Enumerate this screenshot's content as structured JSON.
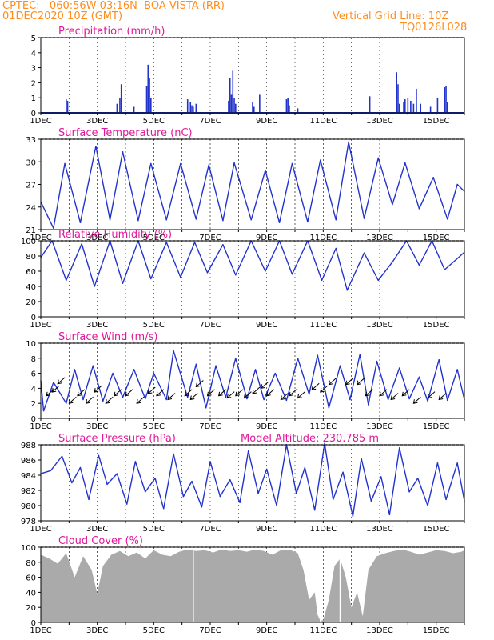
{
  "header": {
    "line1": "CPTEC:   060:56W-03:16N  BOA VISTA (RR)",
    "line2": "01DEC2020 10Z (GMT)",
    "right1": "Vertical Grid Line: 10Z",
    "right2": "TQ0126L028"
  },
  "colors": {
    "header": "#ff8c1a",
    "title": "#e0189a",
    "line": "#2233cc",
    "cloud": "#aaaaaa"
  },
  "panels": {
    "precip": {
      "title": "Precipitation (mm/h)"
    },
    "temp": {
      "title": "Surface Temperature (nC)"
    },
    "rh": {
      "title": "Relative Humidity (%)"
    },
    "wind": {
      "title": "Surface Wind (m/s)"
    },
    "pres": {
      "title": "Surface Pressure (hPa)",
      "extra": "Model Altitude: 230.785 m"
    },
    "cloud": {
      "title": "Cloud Cover (%)"
    }
  },
  "chart_data": [
    {
      "type": "bar",
      "title": "Precipitation (mm/h)",
      "ylim": [
        0,
        5
      ],
      "yticks": [
        "0",
        "1",
        "2",
        "3",
        "4",
        "5"
      ],
      "xticks": [
        "1DEC",
        "3DEC",
        "5DEC",
        "7DEC",
        "9DEC",
        "11DEC",
        "13DEC",
        "15DEC"
      ],
      "x": [
        1.9,
        1.95,
        3.7,
        3.8,
        3.85,
        4.3,
        4.75,
        4.8,
        4.85,
        4.9,
        6.2,
        6.3,
        6.35,
        6.4,
        6.5,
        7.65,
        7.7,
        7.75,
        7.8,
        7.85,
        7.9,
        8.5,
        8.55,
        8.75,
        9.7,
        9.75,
        9.8,
        10.1,
        12.65,
        13.6,
        13.65,
        13.7,
        13.85,
        13.9,
        14.0,
        14.1,
        14.2,
        14.3,
        14.45,
        14.8,
        15.05,
        15.3,
        15.35,
        15.4
      ],
      "values": [
        0.9,
        0.8,
        0.6,
        1.0,
        1.9,
        0.4,
        1.8,
        3.2,
        2.3,
        1.0,
        0.9,
        0.7,
        0.5,
        0.4,
        0.6,
        0.8,
        2.3,
        1.2,
        2.8,
        1.0,
        0.6,
        0.7,
        0.4,
        1.2,
        0.9,
        1.0,
        0.5,
        0.3,
        1.1,
        2.7,
        1.9,
        0.6,
        0.7,
        0.9,
        1.0,
        0.8,
        0.6,
        1.6,
        0.6,
        0.4,
        1.0,
        1.7,
        1.8,
        0.7
      ]
    },
    {
      "type": "line",
      "title": "Surface Temperature (nC)",
      "ylim": [
        20,
        33
      ],
      "yticks": [
        "21",
        "24",
        "27",
        "30",
        "33"
      ],
      "xticks": [
        "1DEC",
        "3DEC",
        "5DEC",
        "7DEC",
        "9DEC",
        "11DEC",
        "13DEC",
        "15DEC"
      ],
      "x": [
        1.0,
        1.45,
        1.85,
        2.4,
        2.95,
        3.45,
        3.9,
        4.45,
        4.9,
        5.45,
        5.95,
        6.5,
        6.95,
        7.45,
        7.85,
        8.45,
        8.95,
        9.45,
        9.9,
        10.45,
        10.9,
        11.45,
        11.9,
        12.45,
        12.95,
        13.45,
        13.9,
        14.4,
        14.9,
        15.4,
        15.75,
        16.0
      ],
      "values": [
        24.0,
        20.2,
        29.5,
        21.0,
        32.0,
        21.4,
        31.2,
        21.3,
        29.5,
        21.4,
        29.5,
        21.5,
        29.3,
        21.3,
        29.6,
        21.4,
        28.5,
        21.0,
        29.5,
        21.1,
        30.0,
        21.4,
        32.6,
        21.6,
        30.3,
        23.6,
        29.6,
        23.0,
        27.5,
        21.5,
        26.5,
        25.5
      ]
    },
    {
      "type": "line",
      "title": "Relative Humidity (%)",
      "ylim": [
        0,
        100
      ],
      "yticks": [
        "0",
        "20",
        "40",
        "60",
        "80",
        "100"
      ],
      "xticks": [
        "1DEC",
        "3DEC",
        "5DEC",
        "7DEC",
        "9DEC",
        "11DEC",
        "13DEC",
        "15DEC"
      ],
      "x": [
        1.0,
        1.4,
        1.9,
        2.45,
        2.9,
        3.45,
        3.9,
        4.45,
        4.9,
        5.45,
        5.95,
        6.45,
        6.9,
        7.45,
        7.9,
        8.45,
        8.95,
        9.45,
        9.9,
        10.45,
        10.95,
        11.45,
        11.85,
        12.45,
        12.95,
        13.45,
        13.95,
        14.4,
        14.85,
        15.3,
        15.7,
        16.0
      ],
      "values": [
        78,
        100,
        48,
        96,
        40,
        100,
        44,
        100,
        50,
        98,
        52,
        98,
        58,
        95,
        55,
        100,
        60,
        100,
        56,
        100,
        48,
        90,
        35,
        84,
        48,
        72,
        100,
        68,
        100,
        62,
        75,
        85
      ]
    },
    {
      "type": "line",
      "title": "Surface Wind (m/s)",
      "ylim": [
        0,
        10
      ],
      "yticks": [
        "0",
        "2",
        "4",
        "6",
        "8",
        "10"
      ],
      "xticks": [
        "1DEC",
        "3DEC",
        "5DEC",
        "7DEC",
        "9DEC",
        "11DEC",
        "13DEC",
        "15DEC"
      ],
      "x": [
        1.0,
        1.1,
        1.45,
        1.9,
        2.2,
        2.5,
        2.85,
        3.2,
        3.55,
        3.9,
        4.3,
        4.7,
        5.0,
        5.45,
        5.7,
        6.2,
        6.5,
        6.85,
        7.2,
        7.55,
        7.9,
        8.3,
        8.6,
        8.9,
        9.3,
        9.7,
        10.1,
        10.5,
        10.8,
        11.2,
        11.6,
        11.95,
        12.3,
        12.6,
        12.9,
        13.3,
        13.7,
        14.05,
        14.4,
        14.7,
        15.1,
        15.4,
        15.75,
        16.0
      ],
      "values": [
        5.0,
        1.0,
        4.8,
        2.0,
        6.5,
        2.5,
        7.0,
        2.3,
        6.0,
        2.8,
        6.5,
        2.6,
        6.0,
        2.5,
        9.0,
        2.8,
        7.2,
        1.4,
        7.0,
        2.8,
        8.0,
        2.6,
        6.5,
        2.5,
        6.0,
        2.4,
        8.0,
        3.2,
        8.4,
        1.4,
        7.0,
        2.5,
        8.5,
        1.8,
        7.6,
        2.5,
        6.7,
        2.6,
        5.5,
        2.3,
        7.8,
        2.4,
        6.5,
        2.5
      ]
    },
    {
      "type": "line",
      "title": "Surface Pressure (hPa)",
      "ylim": [
        978,
        988
      ],
      "yticks": [
        "978",
        "980",
        "982",
        "984",
        "986",
        "988"
      ],
      "xticks": [
        "1DEC",
        "3DEC",
        "5DEC",
        "7DEC",
        "9DEC",
        "11DEC",
        "13DEC",
        "15DEC"
      ],
      "annotation": "Model Altitude: 230.785 m",
      "x": [
        1.0,
        1.35,
        1.75,
        2.1,
        2.4,
        2.7,
        3.05,
        3.35,
        3.7,
        4.05,
        4.35,
        4.7,
        5.05,
        5.35,
        5.7,
        6.05,
        6.35,
        6.7,
        7.0,
        7.35,
        7.7,
        8.05,
        8.35,
        8.7,
        9.0,
        9.35,
        9.7,
        10.05,
        10.35,
        10.7,
        11.05,
        11.35,
        11.7,
        12.05,
        12.35,
        12.7,
        13.05,
        13.35,
        13.7,
        14.05,
        14.35,
        14.7,
        15.05,
        15.35,
        15.75,
        16.0
      ],
      "values": [
        984.2,
        984.6,
        986.5,
        983.0,
        985.0,
        980.8,
        986.6,
        982.8,
        984.2,
        980.2,
        985.8,
        981.8,
        983.6,
        979.6,
        986.8,
        981.2,
        983.2,
        979.8,
        985.8,
        981.2,
        983.4,
        980.4,
        987.2,
        981.6,
        984.8,
        980.0,
        988.0,
        981.6,
        985.0,
        979.4,
        988.2,
        980.8,
        984.4,
        978.6,
        986.2,
        980.6,
        983.8,
        978.8,
        987.6,
        981.8,
        983.6,
        980.0,
        985.6,
        980.8,
        985.6,
        980.6
      ]
    },
    {
      "type": "area",
      "title": "Cloud Cover (%)",
      "ylim": [
        0,
        100
      ],
      "yticks": [
        "0",
        "20",
        "40",
        "60",
        "80",
        "100"
      ],
      "xticks": [
        "1DEC",
        "3DEC",
        "5DEC",
        "7DEC",
        "9DEC",
        "11DEC",
        "13DEC",
        "15DEC"
      ],
      "x": [
        1.0,
        1.3,
        1.6,
        1.9,
        2.2,
        2.5,
        2.8,
        3.0,
        3.2,
        3.5,
        3.8,
        4.1,
        4.4,
        4.7,
        5.0,
        5.3,
        5.6,
        5.9,
        6.2,
        6.5,
        6.8,
        7.1,
        7.4,
        7.7,
        8.0,
        8.3,
        8.6,
        8.9,
        9.2,
        9.5,
        9.8,
        10.1,
        10.3,
        10.5,
        10.7,
        10.8,
        10.9,
        11.0,
        11.2,
        11.4,
        11.6,
        11.8,
        12.0,
        12.2,
        12.4,
        12.6,
        12.9,
        13.2,
        13.5,
        13.8,
        14.1,
        14.4,
        14.7,
        15.0,
        15.3,
        15.6,
        15.9,
        16.0
      ],
      "values": [
        90,
        85,
        78,
        92,
        60,
        88,
        70,
        38,
        75,
        90,
        95,
        88,
        93,
        85,
        96,
        90,
        88,
        94,
        97,
        95,
        96,
        93,
        97,
        95,
        96,
        94,
        97,
        95,
        90,
        96,
        97,
        92,
        70,
        30,
        40,
        10,
        2,
        3,
        30,
        75,
        85,
        60,
        20,
        40,
        8,
        70,
        88,
        92,
        95,
        97,
        94,
        90,
        93,
        96,
        95,
        92,
        94,
        96
      ]
    }
  ]
}
